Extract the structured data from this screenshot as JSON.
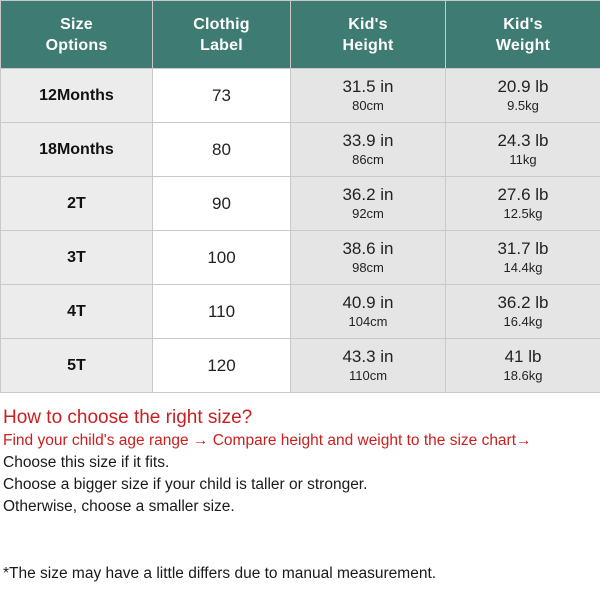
{
  "header": {
    "size_options": [
      "Size",
      "Options"
    ],
    "clothing_label": [
      "Clothig",
      "Label"
    ],
    "kids_height": [
      "Kid's",
      "Height"
    ],
    "kids_weight": [
      "Kid's",
      "Weight"
    ]
  },
  "rows": [
    {
      "size": "12Months",
      "label": "73",
      "height_in": "31.5 in",
      "height_cm": "80cm",
      "weight_lb": "20.9 lb",
      "weight_kg": "9.5kg"
    },
    {
      "size": "18Months",
      "label": "80",
      "height_in": "33.9 in",
      "height_cm": "86cm",
      "weight_lb": "24.3 lb",
      "weight_kg": "11kg"
    },
    {
      "size": "2T",
      "label": "90",
      "height_in": "36.2 in",
      "height_cm": "92cm",
      "weight_lb": "27.6 lb",
      "weight_kg": "12.5kg"
    },
    {
      "size": "3T",
      "label": "100",
      "height_in": "38.6 in",
      "height_cm": "98cm",
      "weight_lb": "31.7 lb",
      "weight_kg": "14.4kg"
    },
    {
      "size": "4T",
      "label": "110",
      "height_in": "40.9 in",
      "height_cm": "104cm",
      "weight_lb": "36.2 lb",
      "weight_kg": "16.4kg"
    },
    {
      "size": "5T",
      "label": "120",
      "height_in": "43.3 in",
      "height_cm": "110cm",
      "weight_lb": "41 lb",
      "weight_kg": "18.6kg"
    }
  ],
  "guide": {
    "title": "How to choose the right size?",
    "steps": "Find your child's age range → Compare height and weight to the size chart→",
    "lines": [
      "Choose this size if it fits.",
      "Choose a bigger size if your child is taller or stronger.",
      "Otherwise, choose a smaller size."
    ],
    "note": "*The size  may have a little differs due to manual measurement."
  },
  "colors": {
    "header_bg": "#3e7b73",
    "accent_text": "#c9201f",
    "size_col_bg": "#ececec",
    "measure_col_bg": "#e5e5e5"
  }
}
